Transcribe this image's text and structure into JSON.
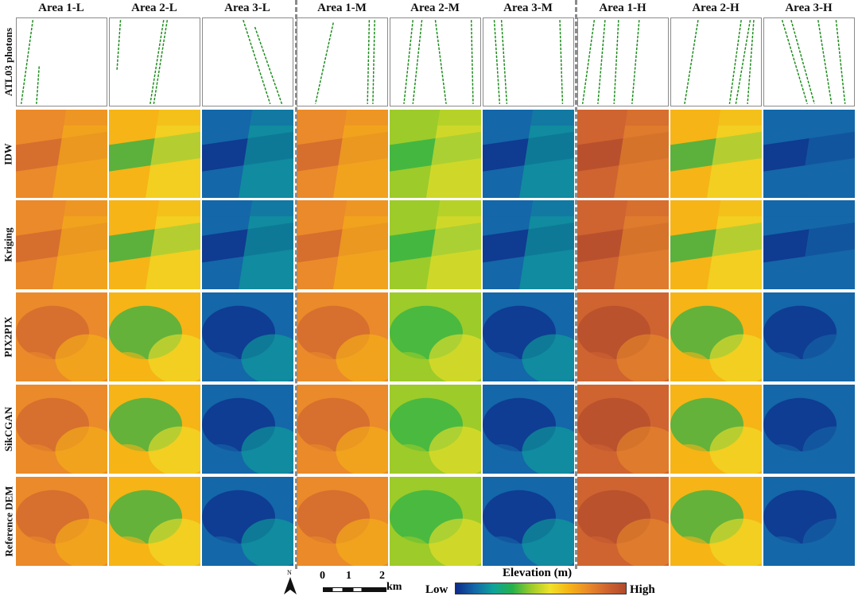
{
  "columns": [
    "Area 1-L",
    "Area 2-L",
    "Area 3-L",
    "Area 1-M",
    "Area 2-M",
    "Area 3-M",
    "Area 1-H",
    "Area 2-H",
    "Area 3-H"
  ],
  "rows": [
    "ATL03 photons",
    "IDW",
    "Kriging",
    "PIX2PIX",
    "SikCGAN",
    "Reference DEM"
  ],
  "legend": {
    "title": "Elevation (m)",
    "low": "Low",
    "high": "High",
    "colors": [
      "#0d2c8a",
      "#1467a8",
      "#0ea39a",
      "#27b04a",
      "#9dcb2a",
      "#f0e12a",
      "#f6b416",
      "#ea8a2a",
      "#cf6430",
      "#b14a2c"
    ]
  },
  "scale": {
    "ticks": [
      "0",
      "1",
      "2"
    ],
    "unit": "km"
  },
  "north_label": "N",
  "photon_color": "#1a8c1a"
}
